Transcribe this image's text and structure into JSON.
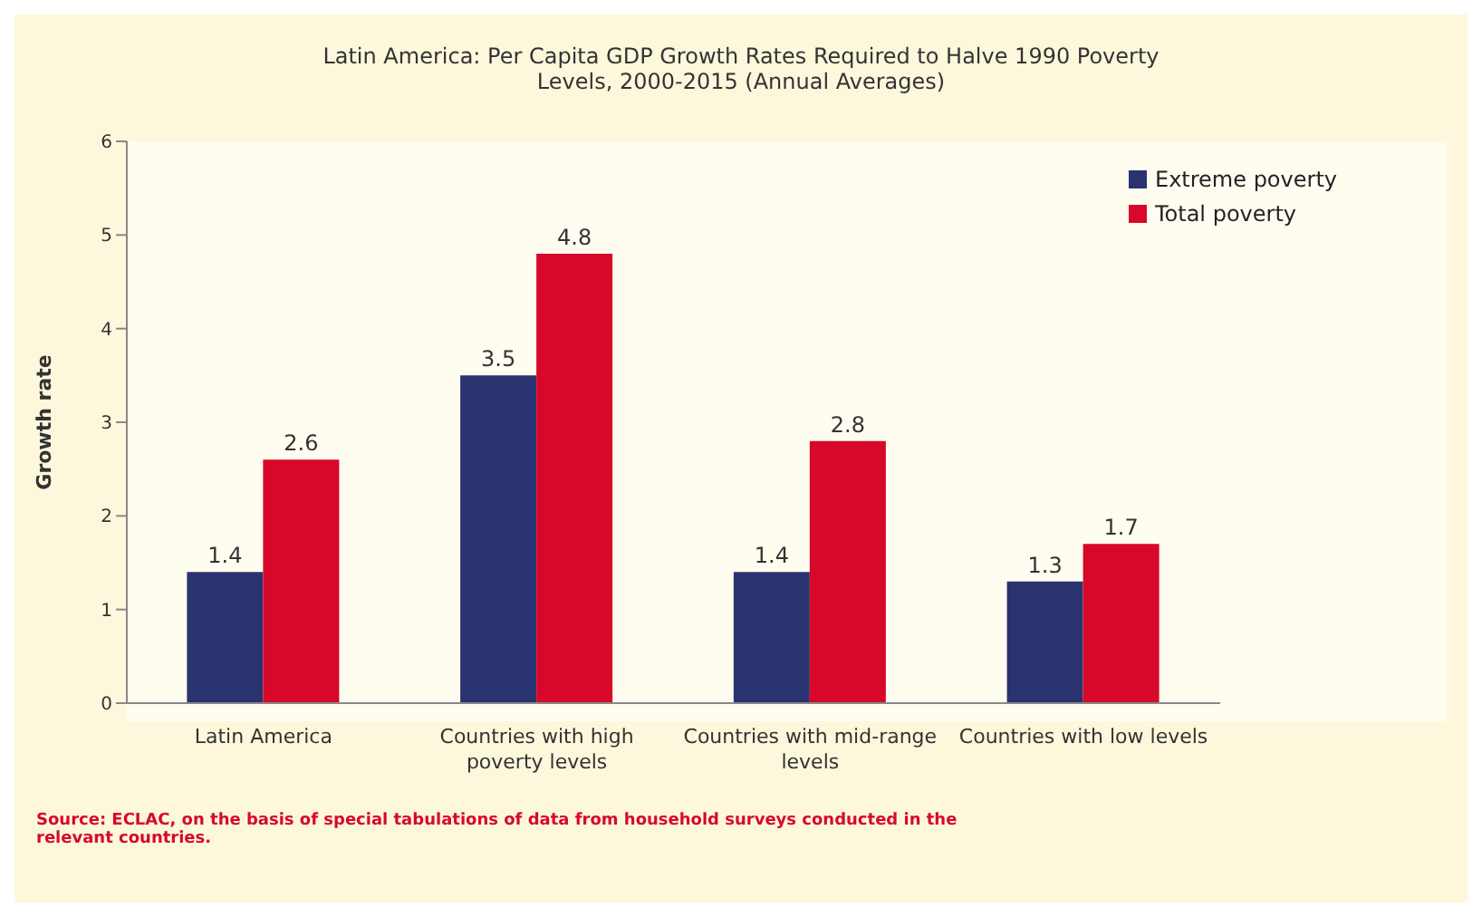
{
  "chart_data": {
    "type": "bar",
    "title": "Latin America: Per Capita GDP Growth Rates Required to Halve 1990 Poverty Levels, 2000-2015 (Annual Averages)",
    "ylabel": "Growth rate",
    "categories": [
      "Latin America",
      "Countries with high poverty levels",
      "Countries with mid-range levels",
      "Countries with low levels"
    ],
    "series": [
      {
        "name": "Extreme poverty",
        "color": "#2b3270",
        "values": [
          1.4,
          3.5,
          1.4,
          1.3
        ]
      },
      {
        "name": "Total poverty",
        "color": "#d8082a",
        "values": [
          2.6,
          4.8,
          2.8,
          1.7
        ]
      }
    ],
    "ylim": [
      0,
      6
    ],
    "yticks": [
      0,
      1,
      2,
      3,
      4,
      5,
      6
    ],
    "grid": false,
    "legend": "top right",
    "data_labels": true,
    "annotations": [
      "Source: ECLAC, on the basis of special tabulations of data from household surveys conducted in the relevant countries."
    ]
  }
}
